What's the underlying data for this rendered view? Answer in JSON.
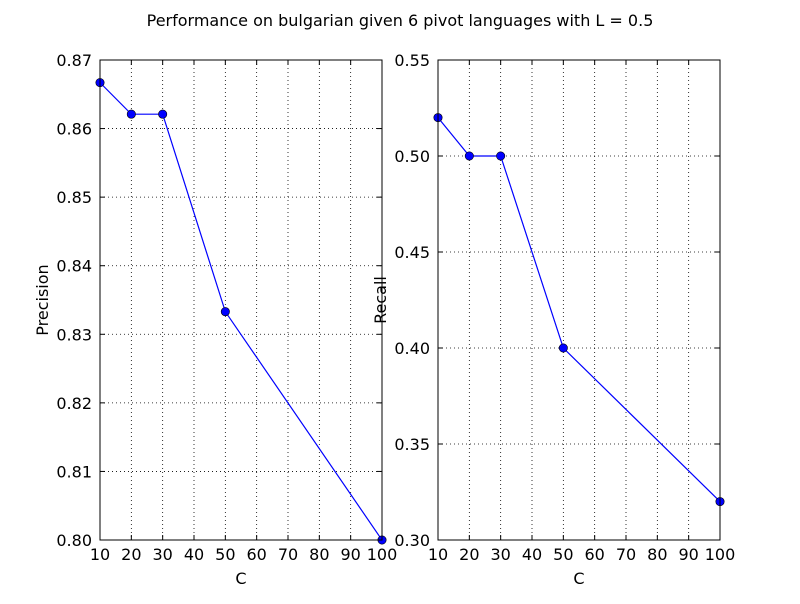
{
  "figure": {
    "title": "Performance on bulgarian given 6 pivot languages with L = 0.5"
  },
  "colors": {
    "line": "#0000ff",
    "marker": "#0000ff",
    "axes": "#000000",
    "grid": "#000000",
    "background": "#ffffff"
  },
  "chart_data": [
    {
      "type": "line",
      "title": "",
      "xlabel": "C",
      "ylabel": "Precision",
      "xlim": [
        10,
        100
      ],
      "ylim": [
        0.8,
        0.87
      ],
      "xticks": [
        10,
        20,
        30,
        40,
        50,
        60,
        70,
        80,
        90,
        100
      ],
      "xtick_labels": [
        "10",
        "20",
        "30",
        "40",
        "50",
        "60",
        "70",
        "80",
        "90",
        "100"
      ],
      "yticks": [
        0.8,
        0.81,
        0.82,
        0.83,
        0.84,
        0.85,
        0.86,
        0.87
      ],
      "ytick_labels": [
        "0.80",
        "0.81",
        "0.82",
        "0.83",
        "0.84",
        "0.85",
        "0.86",
        "0.87"
      ],
      "grid": true,
      "series": [
        {
          "x": [
            10,
            20,
            30,
            50,
            100
          ],
          "y": [
            0.8667,
            0.8621,
            0.8621,
            0.8333,
            0.8
          ]
        }
      ]
    },
    {
      "type": "line",
      "title": "",
      "xlabel": "C",
      "ylabel": "Recall",
      "xlim": [
        10,
        100
      ],
      "ylim": [
        0.3,
        0.55
      ],
      "xticks": [
        10,
        20,
        30,
        40,
        50,
        60,
        70,
        80,
        90,
        100
      ],
      "xtick_labels": [
        "10",
        "20",
        "30",
        "40",
        "50",
        "60",
        "70",
        "80",
        "90",
        "100"
      ],
      "yticks": [
        0.3,
        0.35,
        0.4,
        0.45,
        0.5,
        0.55
      ],
      "ytick_labels": [
        "0.30",
        "0.35",
        "0.40",
        "0.45",
        "0.50",
        "0.55"
      ],
      "grid": true,
      "series": [
        {
          "x": [
            10,
            20,
            30,
            50,
            100
          ],
          "y": [
            0.52,
            0.5,
            0.5,
            0.4,
            0.32
          ]
        }
      ]
    }
  ]
}
